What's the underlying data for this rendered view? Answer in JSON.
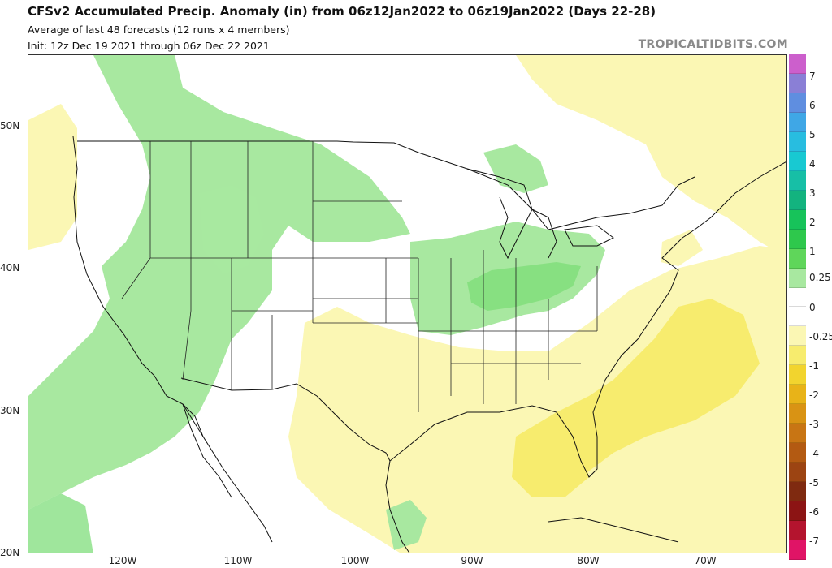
{
  "header": {
    "title": "CFSv2 Accumulated Precip. Anomaly (in) from 06z12Jan2022 to 06z19Jan2022 (Days 22-28)",
    "subtitle": "Average of last 48 forecasts (12 runs x 4 members)",
    "init": "Init: 12z Dec 19 2021 through 06z Dec 22 2021",
    "credit": "TROPICALTIDBITS.COM"
  },
  "axes": {
    "lat_labels": [
      "50N",
      "40N",
      "30N",
      "20N"
    ],
    "lon_labels": [
      "120W",
      "110W",
      "100W",
      "90W",
      "80W",
      "70W"
    ]
  },
  "colorbar": {
    "labels": [
      "7",
      "6",
      "5",
      "4",
      "3",
      "2",
      "1",
      "0.25",
      "0",
      "-0.25",
      "-1",
      "-2",
      "-3",
      "-4",
      "-5",
      "-6",
      "-7"
    ],
    "colors": [
      "#cc5fcc",
      "#8a7fd6",
      "#5f8ee0",
      "#3fa7e6",
      "#28bde0",
      "#18c9d2",
      "#17bfa6",
      "#13b37f",
      "#17c35a",
      "#2ec84c",
      "#5fd65a",
      "#a8e8a0",
      "#ffffff",
      "#ffffff",
      "#fbf7b4",
      "#f7ec6e",
      "#f2d42e",
      "#e8b318",
      "#d99314",
      "#c87514",
      "#b35a12",
      "#9c4412",
      "#7f2a10",
      "#8c1414",
      "#b4142e",
      "#e01466"
    ]
  },
  "map": {
    "projection": "lat-lon",
    "extent": {
      "lon": [
        -127.5,
        -62.5
      ],
      "lat": [
        20,
        55
      ]
    },
    "shading": {
      "green": "#a8e8a0",
      "green_dark": "#5fd65a",
      "yellow_light": "#fbf7b4",
      "yellow": "#f7ec6e",
      "border": "#111111"
    }
  }
}
